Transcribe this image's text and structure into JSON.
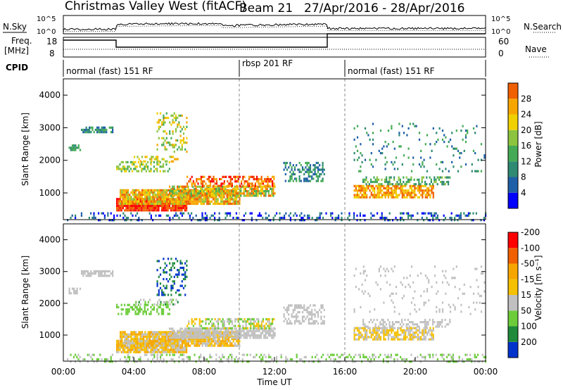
{
  "header": {
    "title": "Christmas Valley West (fitACF)",
    "beam": "Beam 21",
    "date_range": "27/Apr/2016 - 28/Apr/2016"
  },
  "noise_panel": {
    "left_label": "N.Sky",
    "right_label": "N.Search",
    "left_ticks": [
      "10^5",
      "10^0"
    ],
    "right_ticks": [
      "10^5",
      "10^0"
    ]
  },
  "freq_panel": {
    "left_label": "Freq.",
    "left_unit": "[MHz]",
    "right_label": "Nave",
    "left_ticks": [
      "18",
      "8"
    ],
    "right_ticks": [
      "60",
      "0"
    ]
  },
  "cpid": {
    "label": "CPID",
    "segments": [
      {
        "start_h": 0,
        "end_h": 10,
        "text": "normal (fast) 151 RF"
      },
      {
        "start_h": 10,
        "end_h": 16,
        "text": "rbsp 201 RF"
      },
      {
        "start_h": 16,
        "end_h": 24,
        "text": "normal (fast) 151 RF"
      }
    ]
  },
  "colors": {
    "power": [
      "#0000ff",
      "#1f5fa8",
      "#2e8a73",
      "#44aa55",
      "#8cc43f",
      "#f0d000",
      "#f7a600",
      "#f06000",
      "#ff0000"
    ],
    "velocity": [
      "#ff0000",
      "#f06000",
      "#f7a600",
      "#f5c000",
      "#c0c0c0",
      "#6ccc3a",
      "#1e8a3a",
      "#0033cc"
    ]
  },
  "chart_data": [
    {
      "type": "heatmap",
      "name": "power",
      "ylabel": "Slant Range [km]",
      "xlim_hours": [
        0,
        24
      ],
      "ylim": [
        180,
        4500
      ],
      "yticks": [
        1000,
        2000,
        3000,
        4000
      ],
      "colorbar": {
        "label": "Power [dB]",
        "range": [
          0,
          32
        ],
        "ticks": [
          4,
          8,
          12,
          16,
          20,
          24,
          28
        ]
      }
    },
    {
      "type": "heatmap",
      "name": "velocity",
      "ylabel": "Slant Range [km]",
      "xlim_hours": [
        0,
        24
      ],
      "ylim": [
        180,
        4500
      ],
      "yticks": [
        1000,
        2000,
        3000,
        4000
      ],
      "colorbar": {
        "label": "Velocity [m s⁻¹]",
        "ticks": [
          -200,
          -100,
          -50,
          -15,
          15,
          50,
          100,
          200
        ]
      }
    }
  ],
  "xaxis": {
    "label": "Time UT",
    "ticks": [
      "00:00",
      "04:00",
      "08:00",
      "12:00",
      "16:00",
      "20:00",
      "00:00"
    ],
    "tick_hours": [
      0,
      4,
      8,
      12,
      16,
      20,
      24
    ]
  }
}
